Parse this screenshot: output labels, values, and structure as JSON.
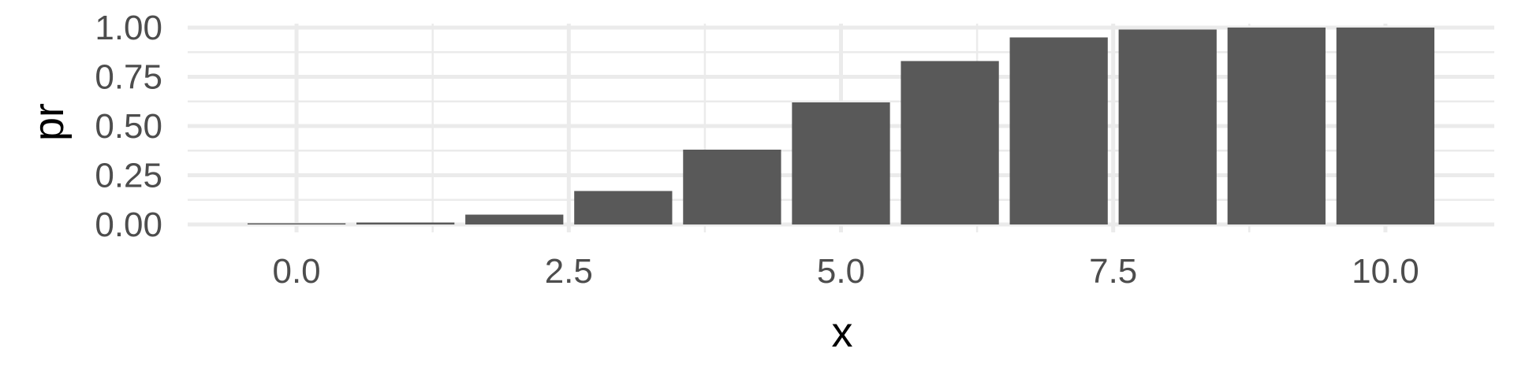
{
  "chart_data": {
    "type": "bar",
    "title": "",
    "xlabel": "x",
    "ylabel": "pr",
    "x": [
      0,
      1,
      2,
      3,
      4,
      5,
      6,
      7,
      8,
      9,
      10
    ],
    "values": [
      0.0,
      0.01,
      0.05,
      0.17,
      0.38,
      0.62,
      0.83,
      0.95,
      0.99,
      1.0,
      1.0
    ],
    "xlim": [
      -1,
      11
    ],
    "ylim": [
      -0.04,
      1.02
    ],
    "x_ticks": [
      0,
      2.5,
      5,
      7.5,
      10
    ],
    "x_tick_labels": [
      "0.0",
      "2.5",
      "5.0",
      "7.5",
      "10.0"
    ],
    "y_ticks": [
      0,
      0.25,
      0.5,
      0.75,
      1
    ],
    "y_tick_labels": [
      "0.00",
      "0.25",
      "0.50",
      "0.75",
      "1.00"
    ],
    "grid": true,
    "legend": "none",
    "bar_color": "#595959",
    "grid_color": "#ebebeb"
  }
}
